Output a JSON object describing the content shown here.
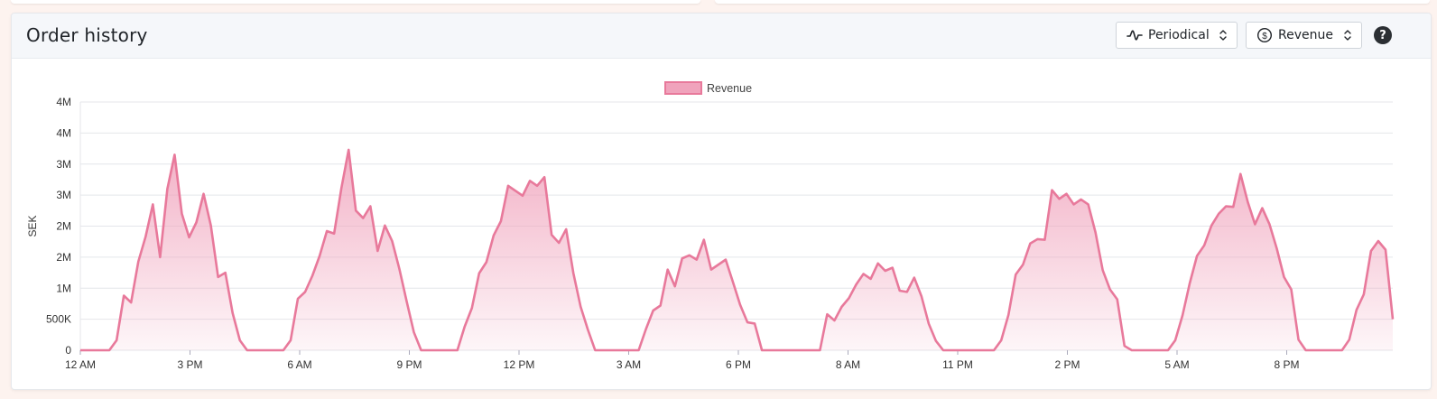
{
  "card": {
    "title": "Order history",
    "period_select": {
      "label": "Periodical",
      "icon": "wave-icon"
    },
    "metric_select": {
      "label": "Revenue",
      "icon": "dollar-circle-icon"
    },
    "help_label": "?"
  },
  "colors": {
    "accent": "#e8799b",
    "fill_top": "#f0a3bc",
    "grid": "#e4e6ea"
  },
  "chart_data": {
    "type": "area",
    "legend": [
      "Revenue"
    ],
    "legend_placement": "top-center",
    "ylabel": "SEK",
    "xlabel": "",
    "grid": true,
    "ylim": [
      0,
      4000000
    ],
    "y_ticks": [
      "0",
      "500K",
      "1M",
      "2M",
      "2M",
      "3M",
      "3M",
      "4M",
      "4M"
    ],
    "x_ticks": [
      "12 AM",
      "3 PM",
      "6 AM",
      "9 PM",
      "12 PM",
      "3 AM",
      "6 PM",
      "8 AM",
      "11 PM",
      "2 PM",
      "5 AM",
      "8 PM"
    ],
    "series": [
      {
        "name": "Revenue",
        "values": [
          0,
          0,
          0,
          0,
          0,
          160000,
          880000,
          770000,
          1430000,
          1830000,
          2350000,
          1500000,
          2600000,
          3150000,
          2200000,
          1820000,
          2060000,
          2520000,
          2010000,
          1180000,
          1250000,
          600000,
          160000,
          0,
          0,
          0,
          0,
          0,
          0,
          160000,
          830000,
          940000,
          1200000,
          1520000,
          1920000,
          1880000,
          2610000,
          3230000,
          2250000,
          2130000,
          2320000,
          1600000,
          2010000,
          1760000,
          1310000,
          790000,
          290000,
          0,
          0,
          0,
          0,
          0,
          0,
          380000,
          680000,
          1240000,
          1420000,
          1850000,
          2080000,
          2650000,
          2570000,
          2490000,
          2730000,
          2650000,
          2790000,
          1860000,
          1730000,
          1950000,
          1240000,
          700000,
          330000,
          0,
          0,
          0,
          0,
          0,
          0,
          0,
          340000,
          640000,
          720000,
          1300000,
          1030000,
          1480000,
          1530000,
          1460000,
          1780000,
          1300000,
          1380000,
          1460000,
          1100000,
          730000,
          450000,
          430000,
          0,
          0,
          0,
          0,
          0,
          0,
          0,
          0,
          0,
          580000,
          480000,
          700000,
          840000,
          1060000,
          1230000,
          1150000,
          1400000,
          1280000,
          1330000,
          960000,
          940000,
          1170000,
          870000,
          430000,
          150000,
          0,
          0,
          0,
          0,
          0,
          0,
          0,
          0,
          160000,
          570000,
          1220000,
          1380000,
          1720000,
          1790000,
          1780000,
          2580000,
          2440000,
          2520000,
          2350000,
          2430000,
          2350000,
          1900000,
          1290000,
          980000,
          820000,
          70000,
          0,
          0,
          0,
          0,
          0,
          0,
          160000,
          560000,
          1080000,
          1520000,
          1690000,
          2010000,
          2200000,
          2320000,
          2310000,
          2840000,
          2390000,
          2030000,
          2290000,
          2030000,
          1640000,
          1180000,
          980000,
          170000,
          0,
          0,
          0,
          0,
          0,
          0,
          170000,
          650000,
          900000,
          1600000,
          1760000,
          1620000,
          500000
        ]
      }
    ]
  }
}
